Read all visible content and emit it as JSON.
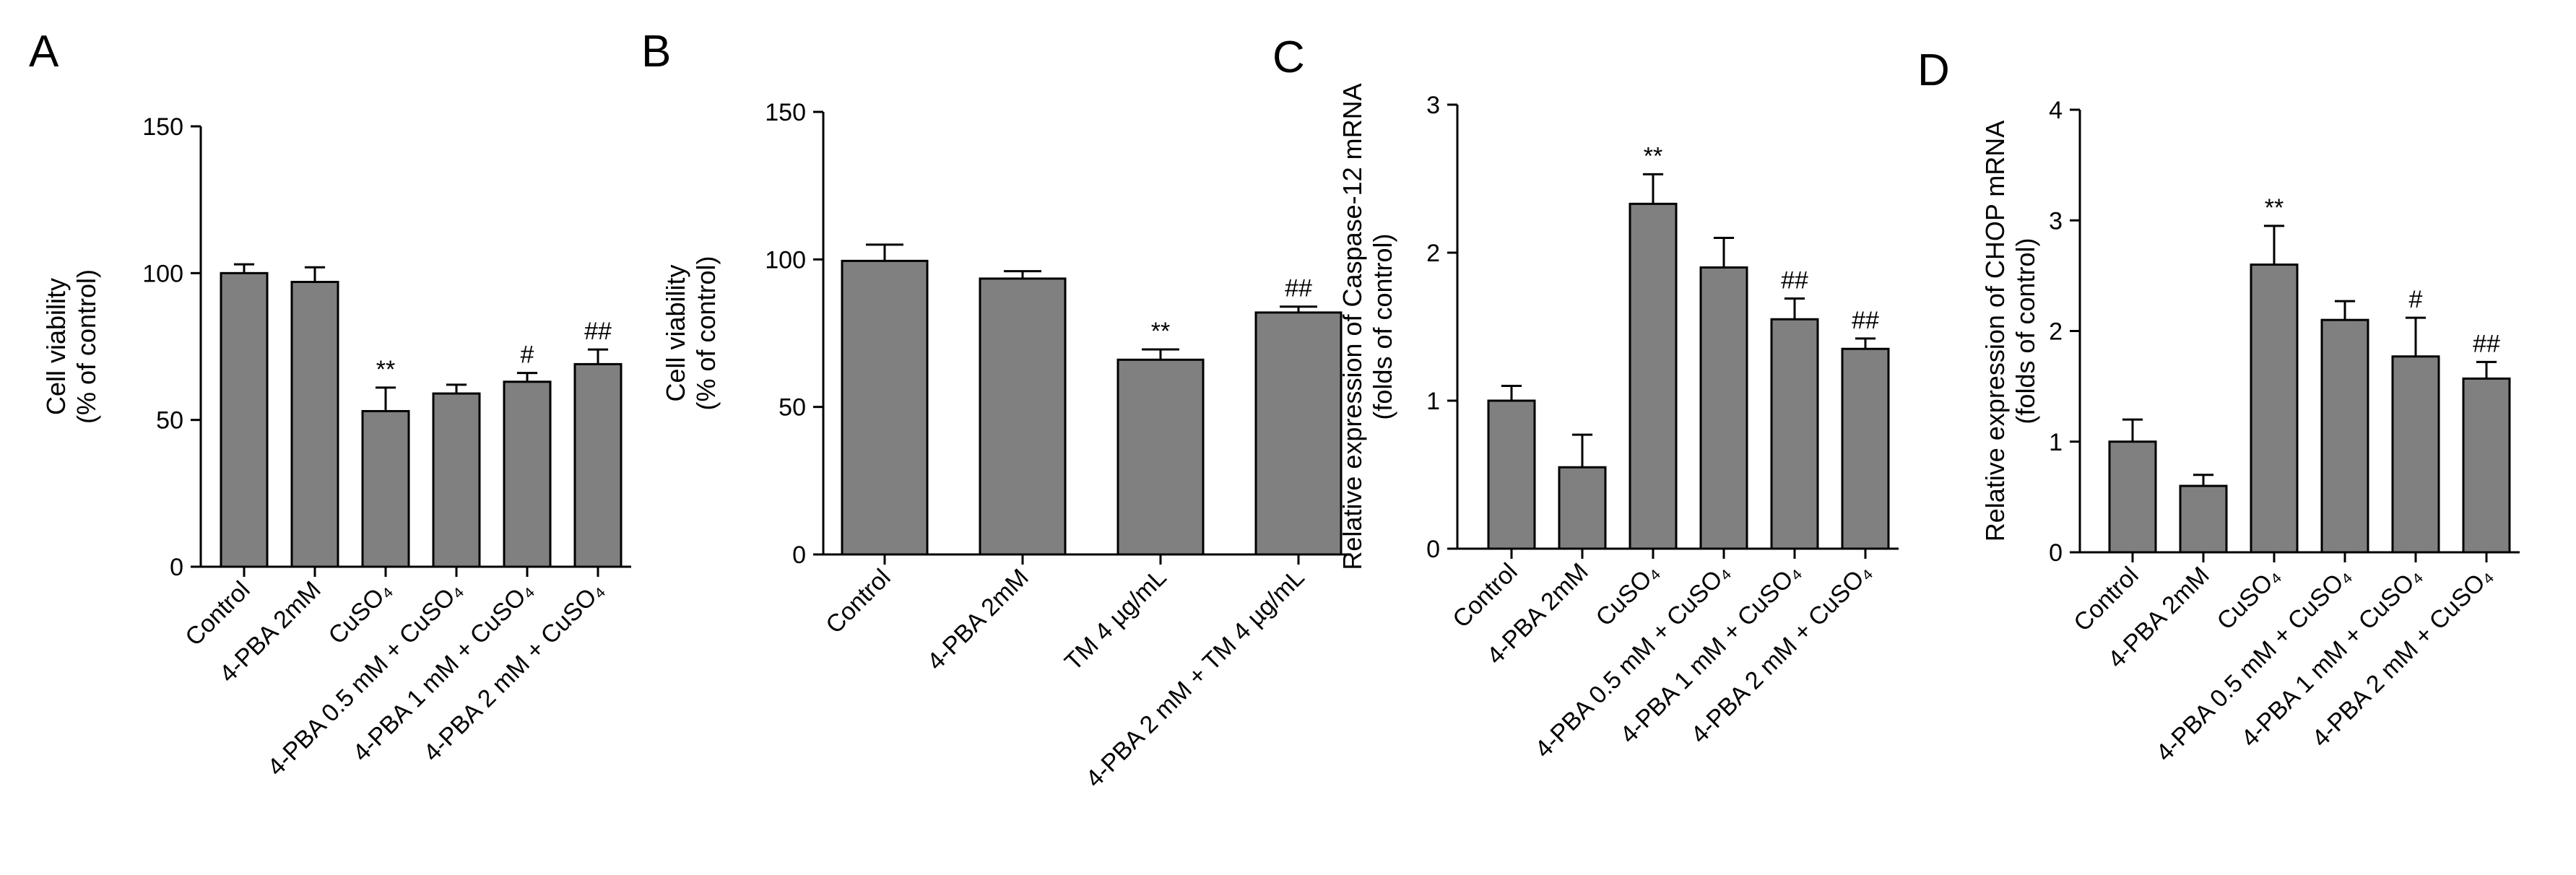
{
  "figure": {
    "bar_color": "#808080",
    "axis_color": "#000000",
    "background": "#ffffff"
  },
  "chart_data": [
    {
      "panel": "A",
      "type": "bar",
      "ylabel": [
        "Cell viability",
        "(% of control)"
      ],
      "ylim": [
        0,
        150
      ],
      "yticks": [
        0,
        50,
        100,
        150
      ],
      "categories": [
        "Control",
        "4-PBA 2mM",
        "CuSO₄",
        "4-PBA 0.5 mM + CuSO₄",
        "4-PBA 1 mM + CuSO₄",
        "4-PBA 2 mM + CuSO₄"
      ],
      "values": [
        100,
        97,
        53,
        59,
        63,
        69
      ],
      "errors": [
        3,
        5,
        8,
        3,
        3,
        5
      ],
      "annotations": [
        "",
        "",
        "**",
        "",
        "#",
        "##"
      ]
    },
    {
      "panel": "B",
      "type": "bar",
      "ylabel": [
        "Cell viability",
        "(% of control)"
      ],
      "ylim": [
        0,
        150
      ],
      "yticks": [
        0,
        50,
        100,
        150
      ],
      "categories": [
        "Control",
        "4-PBA 2mM",
        "TM 4 µg/mL",
        "4-PBA 2 mM + TM 4 µg/mL"
      ],
      "values": [
        99.5,
        93.5,
        66,
        82
      ],
      "errors": [
        5.5,
        2.5,
        3.5,
        2
      ],
      "annotations": [
        "",
        "",
        "**",
        "##"
      ]
    },
    {
      "panel": "C",
      "type": "bar",
      "ylabel": [
        "Relative expression of Caspase-12 mRNA",
        "(folds of control)"
      ],
      "ylim": [
        0,
        3
      ],
      "yticks": [
        0,
        1,
        2,
        3
      ],
      "categories": [
        "Control",
        "4-PBA 2mM",
        "CuSO₄",
        "4-PBA 0.5 mM + CuSO₄",
        "4-PBA 1 mM + CuSO₄",
        "4-PBA 2 mM + CuSO₄"
      ],
      "values": [
        1.0,
        0.55,
        2.33,
        1.9,
        1.55,
        1.35
      ],
      "errors": [
        0.1,
        0.22,
        0.2,
        0.2,
        0.14,
        0.07
      ],
      "annotations": [
        "",
        "",
        "**",
        "",
        "##",
        "##"
      ]
    },
    {
      "panel": "D",
      "type": "bar",
      "ylabel": [
        "Relative expression of CHOP mRNA",
        "(folds of control)"
      ],
      "ylim": [
        0,
        4
      ],
      "yticks": [
        0,
        1,
        2,
        3,
        4
      ],
      "categories": [
        "Control",
        "4-PBA 2mM",
        "CuSO₄",
        "4-PBA 0.5 mM + CuSO₄",
        "4-PBA 1 mM + CuSO₄",
        "4-PBA 2 mM + CuSO₄"
      ],
      "values": [
        1.0,
        0.6,
        2.6,
        2.1,
        1.77,
        1.57
      ],
      "errors": [
        0.2,
        0.1,
        0.35,
        0.17,
        0.35,
        0.15
      ],
      "annotations": [
        "",
        "",
        "**",
        "",
        "#",
        "##"
      ]
    }
  ]
}
